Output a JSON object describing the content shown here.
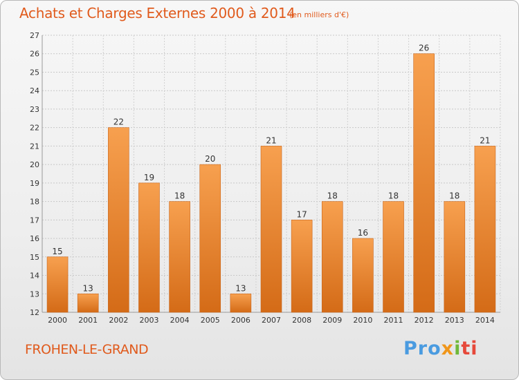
{
  "title": "Achats et Charges Externes 2000 à 2014",
  "subtitle": "(en milliers d'€)",
  "town": "FROHEN-LE-GRAND",
  "logo": {
    "p1": "Pro",
    "p2": "x",
    "p3": "i",
    "p4": "ti"
  },
  "colors": {
    "bar_light": "#f7a04f",
    "bar_dark": "#d46b17",
    "title": "#e05a1c"
  },
  "chart_data": {
    "type": "bar",
    "categories": [
      "2000",
      "2001",
      "2002",
      "2003",
      "2004",
      "2005",
      "2006",
      "2007",
      "2008",
      "2009",
      "2010",
      "2011",
      "2012",
      "2013",
      "2014"
    ],
    "values": [
      15,
      13,
      22,
      19,
      18,
      20,
      13,
      21,
      17,
      18,
      16,
      18,
      26,
      18,
      21
    ],
    "ylim": [
      12,
      27
    ],
    "yticks": [
      12,
      13,
      14,
      15,
      16,
      17,
      18,
      19,
      20,
      21,
      22,
      23,
      24,
      25,
      26,
      27
    ],
    "grid": true,
    "xlabel": "",
    "ylabel": ""
  }
}
